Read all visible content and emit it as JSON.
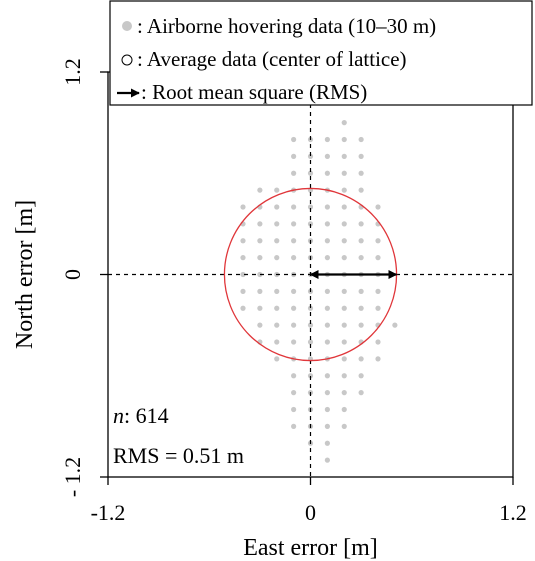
{
  "chart_data": {
    "type": "scatter",
    "xlabel": "East error [m]",
    "ylabel": "North error [m]",
    "xlim": [
      -1.2,
      1.2
    ],
    "ylim": [
      -1.2,
      1.2
    ],
    "x_ticks": [
      "-1.2",
      "0",
      "1.2"
    ],
    "y_ticks": [
      "- 1.2",
      "0",
      "1.2"
    ],
    "grid": false,
    "reference_lines": {
      "x": 0,
      "y": 0,
      "style": "dashed"
    },
    "legend": {
      "placement": "top",
      "entries": [
        {
          "marker": "filled-gray-dot",
          "label": ": Airborne hovering data (10–30 m)"
        },
        {
          "marker": "open-circle",
          "label": ": Average data (center of lattice)"
        },
        {
          "marker": "arrow",
          "label": ": Root mean square (RMS)"
        }
      ]
    },
    "annotations": {
      "n_label": "n",
      "n_value": ": 614",
      "rms_text": "RMS = 0.51 m"
    },
    "rms": 0.51,
    "rms_circle_center": [
      0,
      0
    ],
    "rms_arrow": {
      "from": [
        0,
        0
      ],
      "to": [
        0.51,
        0
      ]
    },
    "lattice_step": 0.1,
    "series": [
      {
        "marker": "filled-gray-dot",
        "color": "#c8c8c8",
        "rows": [
          {
            "y": 0.9,
            "x_from": 0.2,
            "x_to": 0.2
          },
          {
            "y": 0.8,
            "x_from": -0.1,
            "x_to": 0.3
          },
          {
            "y": 0.7,
            "x_from": -0.1,
            "x_to": 0.3
          },
          {
            "y": 0.6,
            "x_from": -0.1,
            "x_to": 0.3
          },
          {
            "y": 0.5,
            "x_from": -0.3,
            "x_to": 0.3
          },
          {
            "y": 0.4,
            "x_from": -0.4,
            "x_to": 0.4
          },
          {
            "y": 0.3,
            "x_from": -0.4,
            "x_to": 0.4
          },
          {
            "y": 0.2,
            "x_from": -0.4,
            "x_to": 0.4
          },
          {
            "y": 0.1,
            "x_from": -0.4,
            "x_to": 0.4
          },
          {
            "y": 0.0,
            "x_from": -0.4,
            "x_to": 0.4
          },
          {
            "y": -0.1,
            "x_from": -0.4,
            "x_to": 0.4
          },
          {
            "y": -0.2,
            "x_from": -0.4,
            "x_to": 0.4
          },
          {
            "y": -0.3,
            "x_from": -0.3,
            "x_to": 0.5
          },
          {
            "y": -0.4,
            "x_from": -0.3,
            "x_to": 0.4
          },
          {
            "y": -0.5,
            "x_from": -0.2,
            "x_to": 0.4
          },
          {
            "y": -0.6,
            "x_from": -0.1,
            "x_to": 0.3
          },
          {
            "y": -0.7,
            "x_from": -0.1,
            "x_to": 0.3
          },
          {
            "y": -0.8,
            "x_from": -0.1,
            "x_to": 0.2
          },
          {
            "y": -0.9,
            "x_from": -0.1,
            "x_to": 0.2
          },
          {
            "y": -1.0,
            "x_from": 0.0,
            "x_to": 0.1
          },
          {
            "y": -1.1,
            "x_from": 0.1,
            "x_to": 0.1
          }
        ]
      }
    ],
    "colors": {
      "points": "#c8c8c8",
      "rms_circle": "#e0363a",
      "arrow": "#000000",
      "reference_lines": "#000000",
      "frame": "#000000"
    }
  }
}
